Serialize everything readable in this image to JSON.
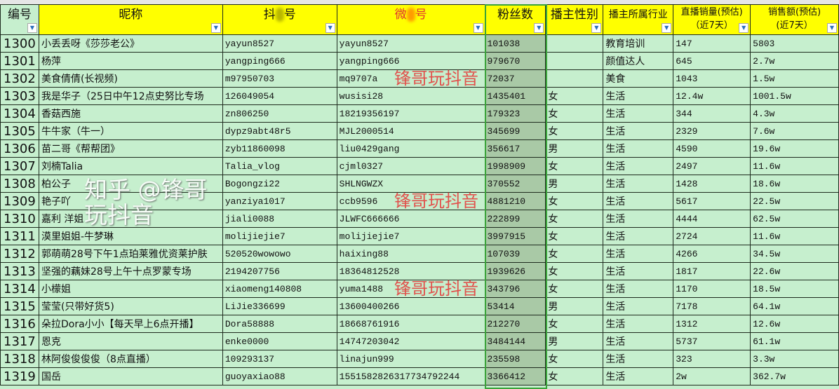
{
  "headers": {
    "id": "编号",
    "nickname": "昵称",
    "douyin_a": "抖",
    "douyin_b": "号",
    "wechat_a": "微",
    "wechat_b": "号",
    "fans": "粉丝数",
    "gender": "播主性别",
    "industry": "播主所属行业",
    "live_sales_1": "直播销量(预估)",
    "live_sales_2": "（近7天）",
    "revenue_1": "销售额(预估)",
    "revenue_2": "(近7天）"
  },
  "colors": {
    "header_bg": "#ffff00",
    "cell_bg": "#c6efce",
    "selected_col": "#a9c9a6",
    "wechat_header": "#e03030",
    "watermark": "#e5413f"
  },
  "rows": [
    [
      "1300",
      "小丢丢呀《莎莎老公》",
      "yayun8527",
      "yayun8527",
      "101038",
      "",
      "教育培训",
      "147",
      "5803"
    ],
    [
      "1301",
      "杨萍",
      "yangping666",
      "yangping666",
      "979670",
      "",
      "颜值达人",
      "645",
      "2.7w"
    ],
    [
      "1302",
      "美食倩倩(长视频)",
      "m97950703",
      "mq9707a",
      "72037",
      "",
      "美食",
      "1043",
      "1.5w"
    ],
    [
      "1303",
      "我是华子（25日中午12点史努比专场",
      "126049054",
      "wusisi28",
      "1435401",
      "女",
      "生活",
      "12.4w",
      "1001.5w"
    ],
    [
      "1304",
      "香菇西施",
      "zn806250",
      "18219356197",
      "179323",
      "女",
      "生活",
      "344",
      "4.3w"
    ],
    [
      "1305",
      "牛牛家（牛一）",
      "dypz9abt48r5",
      "MJL2000514",
      "345699",
      "女",
      "生活",
      "2329",
      "7.6w"
    ],
    [
      "1306",
      "苗二哥《帮帮团》",
      "zyb11860098",
      "liu0429gang",
      "356617",
      "男",
      "生活",
      "4590",
      "19.6w"
    ],
    [
      "1307",
      "刘楠Talia",
      "Talia_vlog",
      "cjml0327",
      "1998909",
      "女",
      "生活",
      "2497",
      "11.6w"
    ],
    [
      "1308",
      "柏公子",
      "Bogongzi22",
      "SHLNGWZX",
      "370552",
      "男",
      "生活",
      "1428",
      "18.6w"
    ],
    [
      "1309",
      "艳子吖",
      "yanziya1017",
      "ccb9596",
      "4881210",
      "女",
      "生活",
      "5617",
      "22.5w"
    ],
    [
      "1310",
      "嘉利 洋姐",
      "jiali0088",
      "JLWFC666666",
      "222899",
      "女",
      "生活",
      "4444",
      "62.5w"
    ],
    [
      "1311",
      "漠里姐姐-牛梦琳",
      "molijiejie7",
      "molijiejie7",
      "3997915",
      "女",
      "生活",
      "2724",
      "11.6w"
    ],
    [
      "1312",
      "郭萌萌28号下午1点珀莱雅优资莱护肤",
      "520520wowowo",
      "haixing88",
      "107039",
      "女",
      "生活",
      "4266",
      "34.5w"
    ],
    [
      "1313",
      "坚强的藕妹28号上午十点罗蒙专场",
      "2194207756",
      "18364812528",
      "1939626",
      "女",
      "生活",
      "1817",
      "22.6w"
    ],
    [
      "1314",
      "小檬姐",
      "xiaomeng140808",
      "yuma1488",
      "343796",
      "女",
      "生活",
      "1170",
      "18.5w"
    ],
    [
      "1315",
      "莹莹(只带好货5)",
      "LiJie336699",
      "13600400266",
      "53414",
      "男",
      "生活",
      "7178",
      "64.1w"
    ],
    [
      "1316",
      "朵拉Dora小小【每天早上6点开播】",
      "Dora58888",
      "18668761916",
      "212270",
      "女",
      "生活",
      "1312",
      "12.6w"
    ],
    [
      "1317",
      "恩克",
      "enke0000",
      "14747203042",
      "3484144",
      "男",
      "生活",
      "5737",
      "61.1w"
    ],
    [
      "1318",
      "林阿俊俊俊俊（8点直播）",
      "109293137",
      "linajun999",
      "235598",
      "女",
      "生活",
      "323",
      "3.3w"
    ],
    [
      "1319",
      "国岳",
      "guoyaxiao88",
      "1551582826317734792244",
      "3366412",
      "女",
      "生活",
      "2w",
      "362.7w"
    ]
  ],
  "watermarks": [
    "锋哥玩抖音",
    "锋哥玩抖音",
    "锋哥玩抖音"
  ],
  "zhihu_watermark": "知乎 @锋哥玩抖音"
}
